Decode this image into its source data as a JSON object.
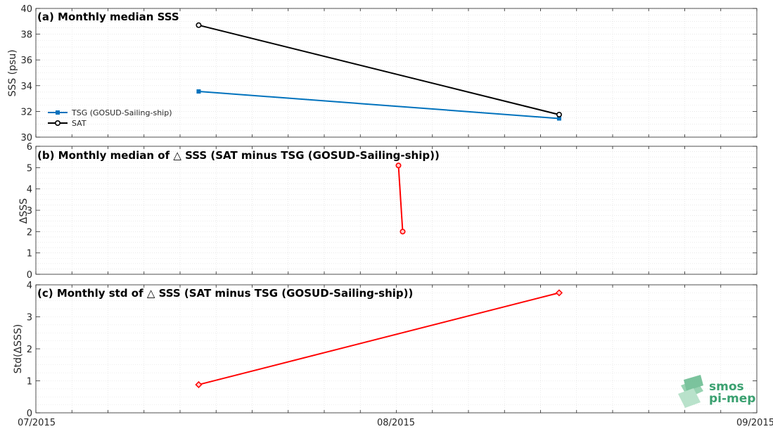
{
  "chart_data": [
    {
      "type": "line",
      "title": "(a) Monthly median SSS",
      "ylabel": "SSS (psu)",
      "ylim": [
        30,
        40
      ],
      "yticks": [
        "30",
        "32",
        "34",
        "36",
        "38",
        "40"
      ],
      "grid": true,
      "legend_position": "left",
      "series": [
        {
          "name": "TSG (GOSUD-Sailing-ship)",
          "color": "#0072BD",
          "marker": "square",
          "x": [
            "2015-07-15",
            "2015-08-15"
          ],
          "values": [
            33.55,
            31.45
          ]
        },
        {
          "name": "SAT",
          "color": "#000000",
          "marker": "circle",
          "x": [
            "2015-07-15",
            "2015-08-15"
          ],
          "values": [
            38.7,
            31.75
          ]
        }
      ]
    },
    {
      "type": "line",
      "title": "(b) Monthly median of △ SSS (SAT minus TSG (GOSUD-Sailing-ship))",
      "ylabel": "ΔSSS",
      "ylim": [
        0,
        6
      ],
      "yticks": [
        "0",
        "1",
        "2",
        "3",
        "4",
        "5",
        "6"
      ],
      "grid": true,
      "series": [
        {
          "color": "#FF0000",
          "marker": "circle",
          "x": [
            "2015-08-01",
            "2015-08-01"
          ],
          "values": [
            5.1,
            2.0
          ]
        }
      ]
    },
    {
      "type": "line",
      "title": "(c) Monthly std of △ SSS (SAT minus TSG (GOSUD-Sailing-ship))",
      "ylabel": "Std(ΔSSS)",
      "ylim": [
        0,
        4
      ],
      "yticks": [
        "0",
        "1",
        "2",
        "3",
        "4"
      ],
      "grid": true,
      "series": [
        {
          "color": "#FF0000",
          "marker": "diamond",
          "x": [
            "2015-07-15",
            "2015-08-15"
          ],
          "values": [
            0.88,
            3.75
          ]
        }
      ]
    }
  ],
  "x_axis": {
    "range": [
      "2015-07-01",
      "2015-09-01"
    ],
    "ticklabels": [
      "07/2015",
      "08/2015",
      "09/2015"
    ]
  },
  "logo": {
    "line1": "smos",
    "line2": "pi-mep",
    "color": "#3aa070"
  }
}
